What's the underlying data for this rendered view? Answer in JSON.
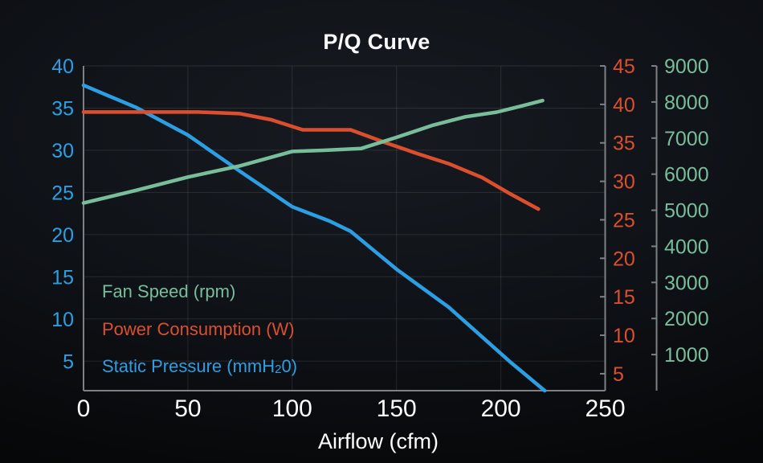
{
  "title": "P/Q Curve",
  "chart_data": {
    "type": "line",
    "title": "P/Q Curve",
    "xlabel": "Airflow (cfm)",
    "grid": {
      "horizontal": true,
      "vertical": true
    },
    "x_axis": {
      "label": "Airflow (cfm)",
      "min": 0,
      "max": 250,
      "ticks": [
        0,
        50,
        100,
        150,
        200,
        250
      ],
      "tick_color": "#FFFFFF"
    },
    "y_axes": [
      {
        "id": "mmh2o",
        "name": "Static Pressure (mmH20)",
        "side": "left",
        "top": 40,
        "bottom": 1.5,
        "ticks": [
          40,
          35,
          30,
          25,
          20,
          15,
          10,
          5
        ],
        "color": "#2C9FE4"
      },
      {
        "id": "watt",
        "name": "Power Consumption (W)",
        "side": "right",
        "top": 45,
        "bottom": 2.8,
        "ticks": [
          45,
          40,
          35,
          30,
          25,
          20,
          15,
          10,
          5
        ],
        "color": "#DC4F2E"
      },
      {
        "id": "rpm",
        "name": "Fan Speed (rpm)",
        "side": "right_outer",
        "top": 9000,
        "bottom": 0,
        "ticks": [
          9000,
          8000,
          7000,
          6000,
          5000,
          4000,
          3000,
          2000,
          1000
        ],
        "color": "#79BE9B"
      }
    ],
    "series": [
      {
        "name": "Fan Speed (rpm)",
        "axis": "rpm",
        "color": "#79BE9B",
        "points": [
          [
            0,
            5200
          ],
          [
            25,
            5550
          ],
          [
            50,
            5920
          ],
          [
            75,
            6230
          ],
          [
            100,
            6630
          ],
          [
            115,
            6660
          ],
          [
            133,
            6710
          ],
          [
            150,
            7020
          ],
          [
            167,
            7350
          ],
          [
            183,
            7590
          ],
          [
            198,
            7720
          ],
          [
            210,
            7890
          ],
          [
            220,
            8040
          ]
        ]
      },
      {
        "name": "Power Consumption (W)",
        "axis": "watt",
        "color": "#DC4F2E",
        "points": [
          [
            0,
            39
          ],
          [
            55,
            39
          ],
          [
            75,
            38.8
          ],
          [
            90,
            38
          ],
          [
            105,
            36.7
          ],
          [
            128,
            36.7
          ],
          [
            145,
            35
          ],
          [
            160,
            33.6
          ],
          [
            175,
            32.3
          ],
          [
            191,
            30.5
          ],
          [
            205,
            28.3
          ],
          [
            218,
            26.4
          ]
        ]
      },
      {
        "name": "Static Pressure (mmH20)",
        "axis": "mmh2o",
        "color": "#2C9FE4",
        "points": [
          [
            0,
            37.7
          ],
          [
            25,
            35.1
          ],
          [
            50,
            31.8
          ],
          [
            75,
            27.5
          ],
          [
            100,
            23.3
          ],
          [
            118,
            21.6
          ],
          [
            128,
            20.4
          ],
          [
            150,
            15.9
          ],
          [
            175,
            11.4
          ],
          [
            205,
            4.8
          ],
          [
            221,
            1.5
          ]
        ]
      }
    ],
    "legend": {
      "position": "inside_lower_left",
      "entries": [
        {
          "pre": "Fan Speed (rpm)",
          "sub": "",
          "post": "",
          "color": "#79BE9B"
        },
        {
          "pre": "Power Consumption (W)",
          "sub": "",
          "post": "",
          "color": "#DC4F2E"
        },
        {
          "pre": "Static Pressure (mmH",
          "sub": "2",
          "post": "0)",
          "color": "#2C9FE4"
        }
      ]
    }
  },
  "colors": {
    "gridline": "rgba(255,255,255,0.10)",
    "spine": "#7E8184",
    "tick": "#7E8184",
    "title": "#F8F8F8",
    "x_tick_label": "#FFFFFF"
  }
}
